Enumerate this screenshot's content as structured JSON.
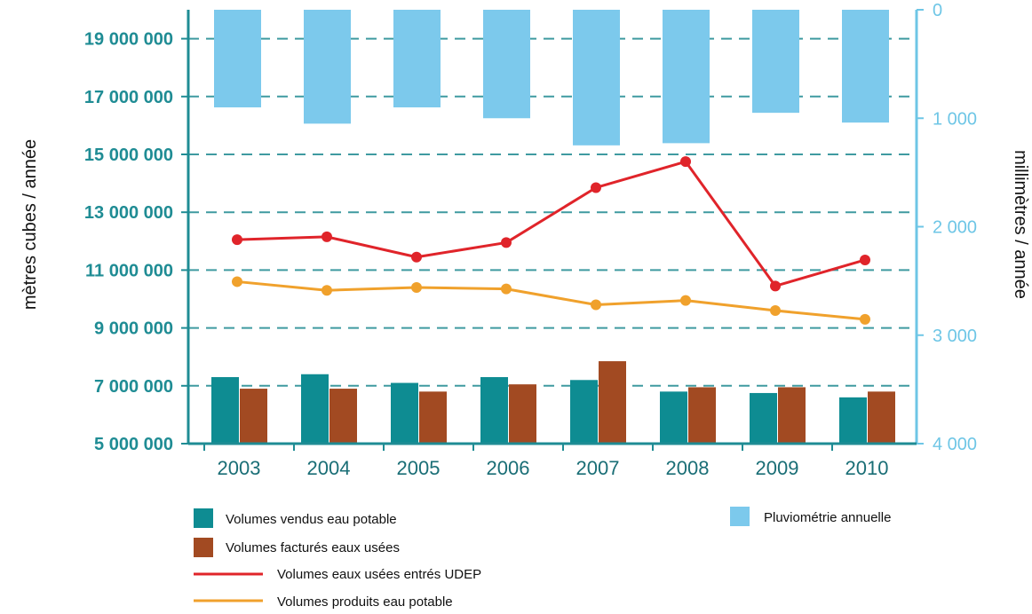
{
  "chart_data": {
    "type": "bar+line",
    "title": "",
    "categories": [
      "2003",
      "2004",
      "2005",
      "2006",
      "2007",
      "2008",
      "2009",
      "2010"
    ],
    "ylabel_left": "mètres cubes / année",
    "ylabel_right": "millimètres / année",
    "ylim_left": [
      5000000,
      20000000
    ],
    "yticks_left": [
      5000000,
      7000000,
      9000000,
      11000000,
      13000000,
      15000000,
      17000000,
      19000000
    ],
    "yticks_left_labels": [
      "5 000 000",
      "7 000 000",
      "9 000 000",
      "11 000 000",
      "13 000 000",
      "15 000 000",
      "17 000 000",
      "19 000 000"
    ],
    "ylim_right_inverted": [
      0,
      4000
    ],
    "yticks_right": [
      0,
      1000,
      2000,
      3000,
      4000
    ],
    "yticks_right_labels": [
      "0",
      "1 000",
      "2 000",
      "3 000",
      "4 000"
    ],
    "grid": "dashed horizontal",
    "series": [
      {
        "name": "Volumes vendus eau potable",
        "kind": "bar",
        "axis": "left",
        "color": "#0e8c92",
        "values": [
          7300000,
          7400000,
          7100000,
          7300000,
          7200000,
          6800000,
          6750000,
          6600000
        ]
      },
      {
        "name": "Volumes facturés eaux usées",
        "kind": "bar",
        "axis": "left",
        "color": "#a24a22",
        "values": [
          6900000,
          6900000,
          6800000,
          7050000,
          7850000,
          6950000,
          6950000,
          6800000
        ]
      },
      {
        "name": "Volumes eaux usées entrés UDEP",
        "kind": "line",
        "axis": "left",
        "color": "#e0242a",
        "values": [
          12050000,
          12150000,
          11450000,
          11950000,
          13850000,
          14750000,
          10450000,
          11350000
        ]
      },
      {
        "name": "Volumes produits eau potable",
        "kind": "line",
        "axis": "left",
        "color": "#f0a12c",
        "values": [
          10600000,
          10300000,
          10400000,
          10350000,
          9800000,
          9950000,
          9600000,
          9300000
        ]
      },
      {
        "name": "Pluviométrie annuelle",
        "kind": "bar",
        "axis": "right",
        "direction": "down",
        "color": "#7cc9ec",
        "values": [
          900,
          1050,
          900,
          1000,
          1250,
          1230,
          950,
          1040
        ]
      }
    ],
    "legend": {
      "left": [
        "Volumes vendus eau potable",
        "Volumes facturés eaux usées",
        "Volumes eaux usées entrés UDEP",
        "Volumes produits eau potable"
      ],
      "right": [
        "Pluviométrie annuelle"
      ]
    }
  },
  "colors": {
    "axis": "#1f8c94",
    "right_axis": "#6ec6e6",
    "grid": "#3f9aa0"
  }
}
